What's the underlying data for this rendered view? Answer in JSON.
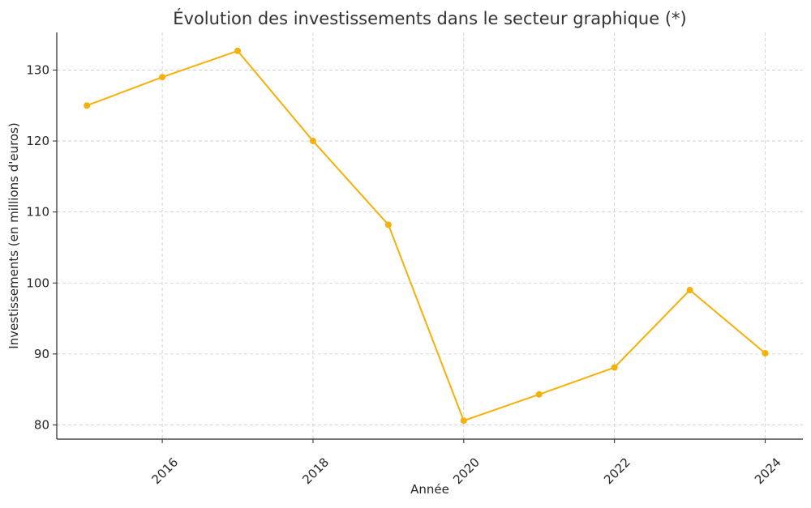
{
  "chart_data": {
    "type": "line",
    "title": "Évolution des investissements dans le secteur graphique (*)",
    "xlabel": "Année",
    "ylabel": "Investissements (en millions d'euros)",
    "x": [
      2015,
      2016,
      2017,
      2018,
      2019,
      2020,
      2021,
      2022,
      2023,
      2024
    ],
    "series": [
      {
        "values": [
          125.0,
          129.0,
          132.7,
          120.0,
          108.2,
          80.6,
          84.3,
          88.1,
          99.0,
          90.1
        ]
      }
    ],
    "xlim": [
      2014.6,
      2024.5
    ],
    "ylim": [
      78.0,
      135.3
    ],
    "x_ticks": [
      "2016",
      "2018",
      "2020",
      "2022",
      "2024"
    ],
    "y_ticks": [
      "80",
      "90",
      "100",
      "110",
      "120",
      "130"
    ],
    "grid": true,
    "line_color": "#F5B00A",
    "marker": "circle"
  }
}
